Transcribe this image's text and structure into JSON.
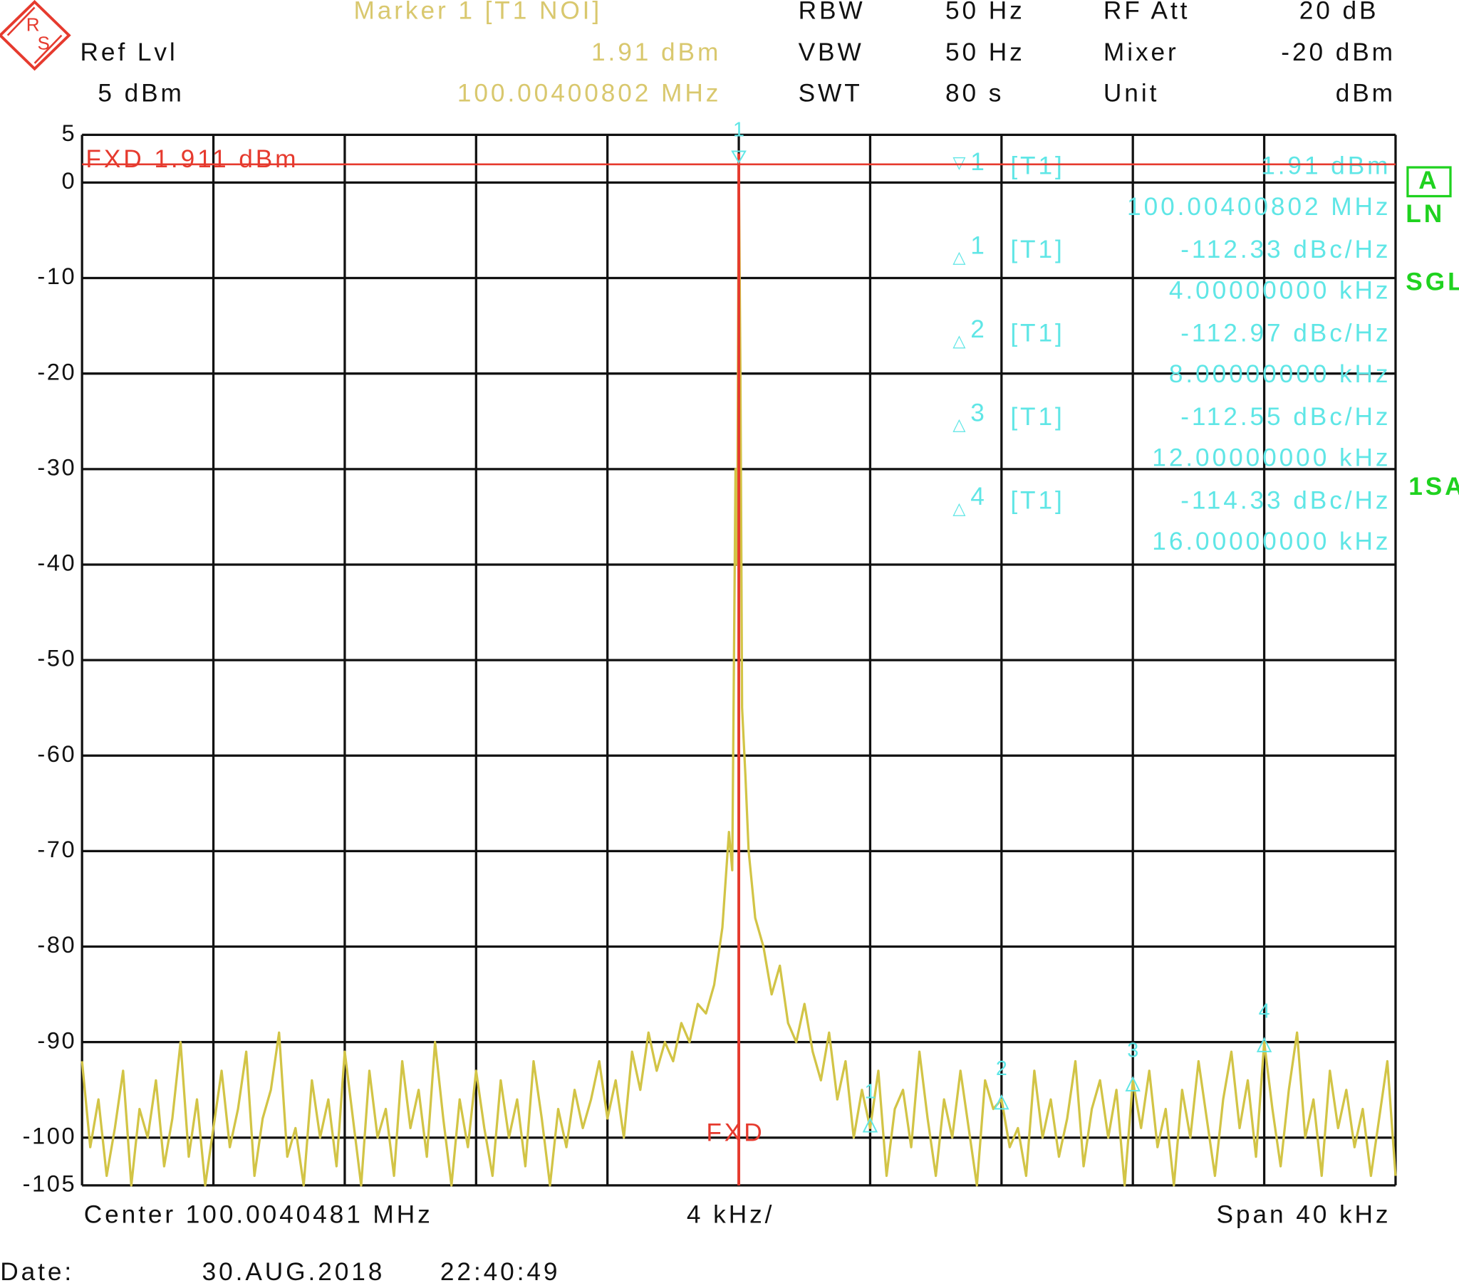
{
  "logo": {
    "top": "R",
    "bottom": "S"
  },
  "header": {
    "marker_title": "Marker 1 [T1 NOI]",
    "marker_level": "1.91 dBm",
    "marker_freq": "100.00400802 MHz",
    "ref_label": "Ref Lvl",
    "ref_value": "5 dBm",
    "rbw_label": "RBW",
    "rbw_value": "50 Hz",
    "vbw_label": "VBW",
    "vbw_value": "50 Hz",
    "swt_label": "SWT",
    "swt_value": "80 s",
    "att_label": "RF Att",
    "att_value": "20 dB",
    "mixer_label": "Mixer",
    "mixer_value": "-20 dBm",
    "unit_label": "Unit",
    "unit_value": "dBm"
  },
  "marker_table": [
    {
      "symbol": "▽",
      "number": "1",
      "trace": "[T1]",
      "value": "1.91 dBm",
      "freq": "100.00400802 MHz"
    },
    {
      "symbol": "△",
      "number": "1",
      "trace": "[T1]",
      "value": "-112.33 dBc/Hz",
      "freq": "4.00000000 kHz"
    },
    {
      "symbol": "△",
      "number": "2",
      "trace": "[T1]",
      "value": "-112.97 dBc/Hz",
      "freq": "8.00000000 kHz"
    },
    {
      "symbol": "△",
      "number": "3",
      "trace": "[T1]",
      "value": "-112.55 dBc/Hz",
      "freq": "12.00000000 kHz"
    },
    {
      "symbol": "△",
      "number": "4",
      "trace": "[T1]",
      "value": "-114.33 dBc/Hz",
      "freq": "16.00000000 kHz"
    }
  ],
  "side_labels": {
    "mode": "A",
    "ln": "LN",
    "sgl": "SGL",
    "sa": "1SA"
  },
  "chart_data": {
    "type": "line",
    "color": "#d2c446",
    "xlim": [
      -20,
      20
    ],
    "ylim": [
      -105,
      5
    ],
    "yticks": [
      5,
      0,
      -10,
      -20,
      -30,
      -40,
      -50,
      -60,
      -70,
      -80,
      -90,
      -100,
      -105
    ],
    "fxd_line": {
      "label": "FXD 1.911 dBm",
      "value": 1.911,
      "color": "#e63a2e"
    },
    "fxd_marker_label": "FXD",
    "x": [
      -20,
      -19.75,
      -19.5,
      -19.25,
      -19,
      -18.75,
      -18.5,
      -18.25,
      -18,
      -17.75,
      -17.5,
      -17.25,
      -17,
      -16.75,
      -16.5,
      -16.25,
      -16,
      -15.75,
      -15.5,
      -15.25,
      -15,
      -14.75,
      -14.5,
      -14.25,
      -14,
      -13.75,
      -13.5,
      -13.25,
      -13,
      -12.75,
      -12.5,
      -12.25,
      -12,
      -11.75,
      -11.5,
      -11.25,
      -11,
      -10.75,
      -10.5,
      -10.25,
      -10,
      -9.75,
      -9.5,
      -9.25,
      -9,
      -8.75,
      -8.5,
      -8.25,
      -8,
      -7.75,
      -7.5,
      -7.25,
      -7,
      -6.75,
      -6.5,
      -6.25,
      -6,
      -5.75,
      -5.5,
      -5.25,
      -5,
      -4.75,
      -4.5,
      -4.25,
      -4,
      -3.75,
      -3.5,
      -3.25,
      -3,
      -2.75,
      -2.5,
      -2.25,
      -2,
      -1.75,
      -1.5,
      -1.25,
      -1,
      -0.75,
      -0.5,
      -0.3,
      -0.2,
      -0.1,
      -0.05,
      0,
      0.05,
      0.1,
      0.2,
      0.3,
      0.5,
      0.75,
      1,
      1.25,
      1.5,
      1.75,
      2,
      2.25,
      2.5,
      2.75,
      3,
      3.25,
      3.5,
      3.75,
      4,
      4.25,
      4.5,
      4.75,
      5,
      5.25,
      5.5,
      5.75,
      6,
      6.25,
      6.5,
      6.75,
      7,
      7.25,
      7.5,
      7.75,
      8,
      8.25,
      8.5,
      8.75,
      9,
      9.25,
      9.5,
      9.75,
      10,
      10.25,
      10.5,
      10.75,
      11,
      11.25,
      11.5,
      11.75,
      12,
      12.25,
      12.5,
      12.75,
      13,
      13.25,
      13.5,
      13.75,
      14,
      14.25,
      14.5,
      14.75,
      15,
      15.25,
      15.5,
      15.75,
      16,
      16.25,
      16.5,
      16.75,
      17,
      17.25,
      17.5,
      17.75,
      18,
      18.25,
      18.5,
      18.75,
      19,
      19.25,
      19.5,
      19.75,
      20
    ],
    "values": [
      -92,
      -101,
      -96,
      -104,
      -99,
      -93,
      -105,
      -97,
      -100,
      -94,
      -103,
      -98,
      -90,
      -102,
      -96,
      -105,
      -99,
      -93,
      -101,
      -97,
      -91,
      -104,
      -98,
      -95,
      -89,
      -102,
      -99,
      -105,
      -94,
      -100,
      -96,
      -103,
      -91,
      -98,
      -105,
      -93,
      -100,
      -97,
      -104,
      -92,
      -99,
      -95,
      -102,
      -90,
      -98,
      -105,
      -96,
      -101,
      -93,
      -99,
      -104,
      -94,
      -100,
      -96,
      -103,
      -92,
      -98,
      -105,
      -97,
      -101,
      -95,
      -99,
      -96,
      -92,
      -98,
      -94,
      -100,
      -91,
      -95,
      -89,
      -93,
      -90,
      -92,
      -88,
      -90,
      -86,
      -87,
      -84,
      -78,
      -68,
      -72,
      -30,
      -40,
      1.9,
      -20,
      -55,
      -62,
      -70,
      -77,
      -80,
      -85,
      -82,
      -88,
      -90,
      -86,
      -91,
      -94,
      -89,
      -96,
      -92,
      -100,
      -95,
      -99,
      -93,
      -104,
      -97,
      -95,
      -101,
      -91,
      -98,
      -104,
      -96,
      -100,
      -93,
      -99,
      -105,
      -94,
      -97,
      -96,
      -101,
      -99,
      -104,
      -93,
      -100,
      -96,
      -102,
      -98,
      -92,
      -103,
      -97,
      -94,
      -100,
      -95,
      -105,
      -94,
      -99,
      -93,
      -101,
      -97,
      -105,
      -95,
      -100,
      -92,
      -98,
      -104,
      -96,
      -91,
      -99,
      -94,
      -102,
      -90,
      -97,
      -103,
      -95,
      -89,
      -100,
      -96,
      -104,
      -93,
      -99,
      -95,
      -101,
      -97,
      -104,
      -98,
      -92,
      -104
    ],
    "trace_markers": [
      {
        "label": "1",
        "x": 0,
        "y": 1.91
      },
      {
        "label": "1",
        "x": 4,
        "y": -98.8
      },
      {
        "label": "2",
        "x": 8,
        "y": -96.4
      },
      {
        "label": "3",
        "x": 12,
        "y": -94.5
      },
      {
        "label": "4",
        "x": 16,
        "y": -90.4
      }
    ],
    "marker_color": "#5fe6e6"
  },
  "footer": {
    "center": "Center 100.0040481 MHz",
    "div": "4 kHz/",
    "span": "Span 40 kHz",
    "date_label": "Date:",
    "date": "30.AUG.2018",
    "time": "22:40:49"
  }
}
